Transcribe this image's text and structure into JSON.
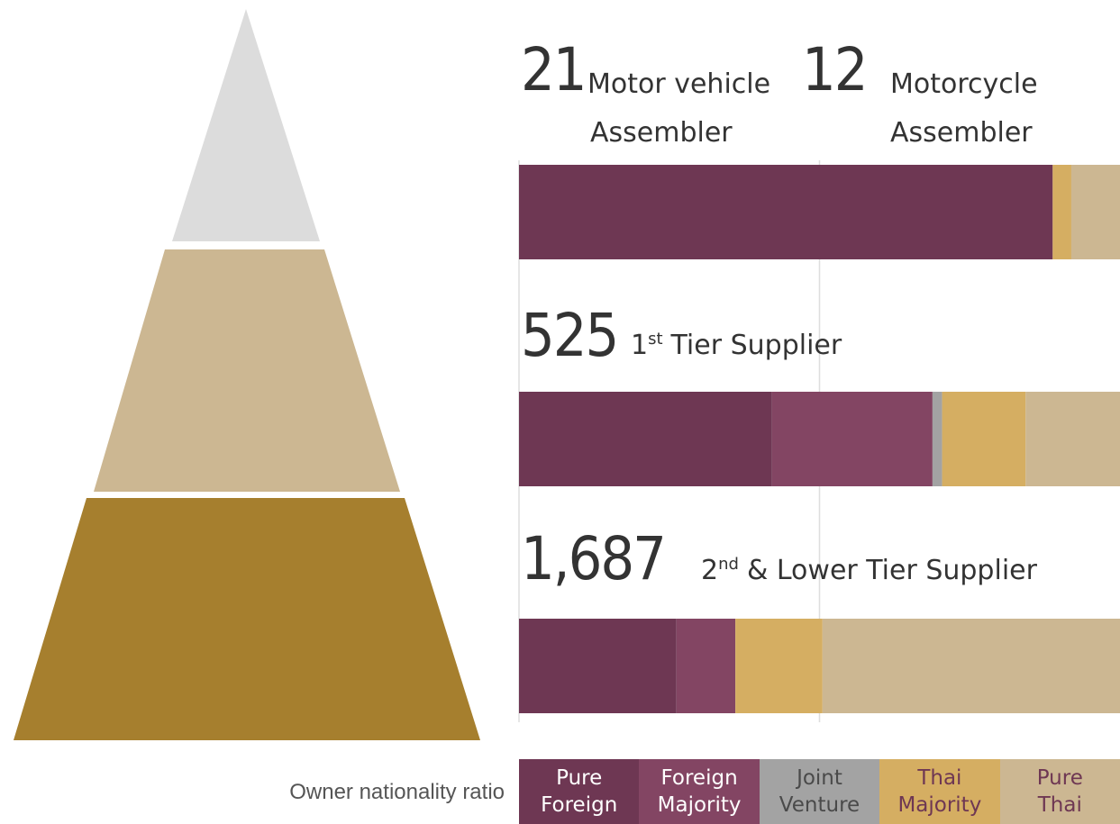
{
  "chart_data": {
    "type": "stacked_bar_horizontal",
    "headings": [
      {
        "count": "21",
        "label": [
          "Motor vehicle",
          "Assembler"
        ],
        "count2": "12",
        "label2": [
          "Motorcycle",
          "Assembler"
        ]
      },
      {
        "count": "525",
        "ordinal": "1",
        "ordinal_suffix": "st",
        "label": "Tier Supplier"
      },
      {
        "count": "1,687",
        "ordinal": "2",
        "ordinal_suffix": "nd",
        "label": "& Lower Tier Supplier"
      }
    ],
    "xlim": [
      0,
      100
    ],
    "xticks": [
      0,
      50
    ],
    "grid": true,
    "legend_title": "Owner nationality ratio",
    "series": [
      {
        "name": "Pure Foreign",
        "color": "#6e3753",
        "text_color": "#ffffff",
        "values": [
          88.8,
          42.1,
          26.2
        ]
      },
      {
        "name": "Foreign Majority",
        "color": "#834563",
        "text_color": "#ffffff",
        "values": [
          0,
          26.7,
          9.8
        ]
      },
      {
        "name": "Joint Venture",
        "color": "#a3a3a3",
        "text_color": "#4a4a4a",
        "values": [
          0,
          1.6,
          0
        ]
      },
      {
        "name": "Thai Majority",
        "color": "#d5ae62",
        "text_color": "#6e3753",
        "values": [
          3.1,
          13.9,
          14.5
        ]
      },
      {
        "name": "Pure Thai",
        "color": "#ccb792",
        "text_color": "#6e3753",
        "values": [
          8.1,
          15.7,
          49.5
        ]
      }
    ]
  }
}
